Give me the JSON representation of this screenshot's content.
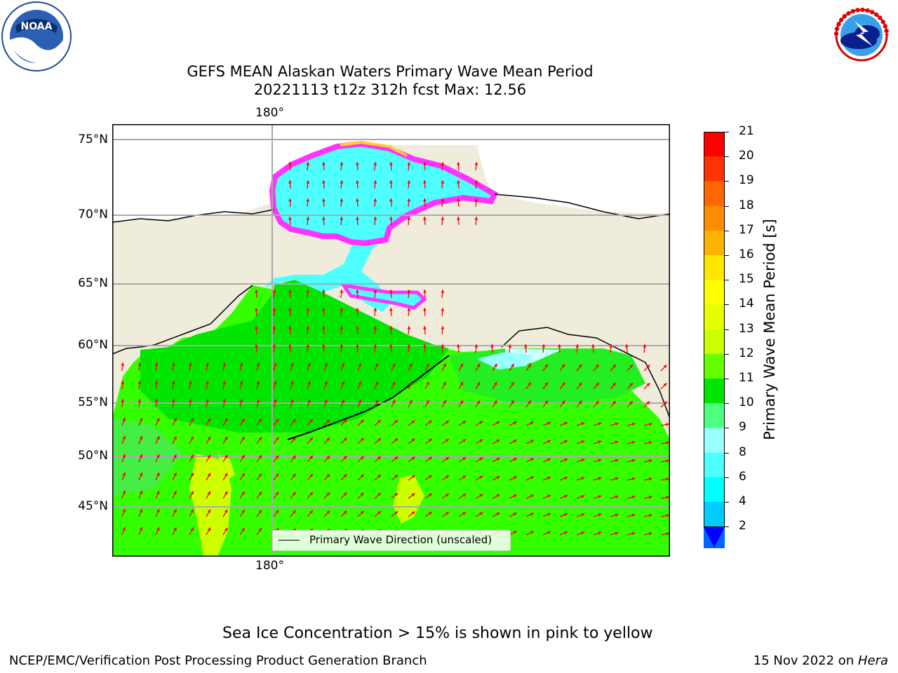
{
  "logos": {
    "noaa": {
      "text": "NOAA",
      "ring_text": "NATIONAL OCEANIC AND ATMOSPHERIC ADMINISTRATION · U.S. DEPARTMENT OF COMMERCE"
    },
    "nws": {
      "ring_text": "NATIONAL WEATHER SERVICE"
    }
  },
  "header": {
    "title_line1": "GEFS MEAN Alaskan Waters Primary Wave Mean Period",
    "title_line2": "20221113 t12z 312h fcst   Max: 12.56"
  },
  "map": {
    "lon_label_top": "180°",
    "lon_label_bottom": "180°",
    "lat_labels": [
      "75°N",
      "70°N",
      "65°N",
      "60°N",
      "55°N",
      "50°N",
      "45°N"
    ],
    "legend_label": "Primary Wave Direction (unscaled)",
    "colors": {
      "land": "#efecdc",
      "ocean_main": "#33ff00",
      "ice_pink": "#ff33ff",
      "ice_yellow": "#ffcc33",
      "arrow": "#ff0000"
    }
  },
  "colorbar": {
    "label": "Primary Wave Mean Period [s]",
    "ticks": [
      "21",
      "20",
      "19",
      "18",
      "17",
      "16",
      "15",
      "14",
      "13",
      "12",
      "11",
      "10",
      "9",
      "8",
      "6",
      "4",
      "2"
    ],
    "colors": [
      "#ff0000",
      "#ff3300",
      "#ff6600",
      "#ff8c00",
      "#ffb300",
      "#ffe600",
      "#ffff00",
      "#e6ff00",
      "#ccff00",
      "#66ff00",
      "#00e600",
      "#4dff80",
      "#99ffff",
      "#4dffff",
      "#00ffff",
      "#00ccff",
      "#0066ff"
    ],
    "extend_color": "#0000ff"
  },
  "footer": {
    "note": "Sea Ice Concentration > 15% is shown in pink to yellow",
    "credit": "NCEP/EMC/Verification Post Processing Product Generation Branch",
    "date": "15 Nov 2022 on ",
    "machine": "Hera"
  }
}
